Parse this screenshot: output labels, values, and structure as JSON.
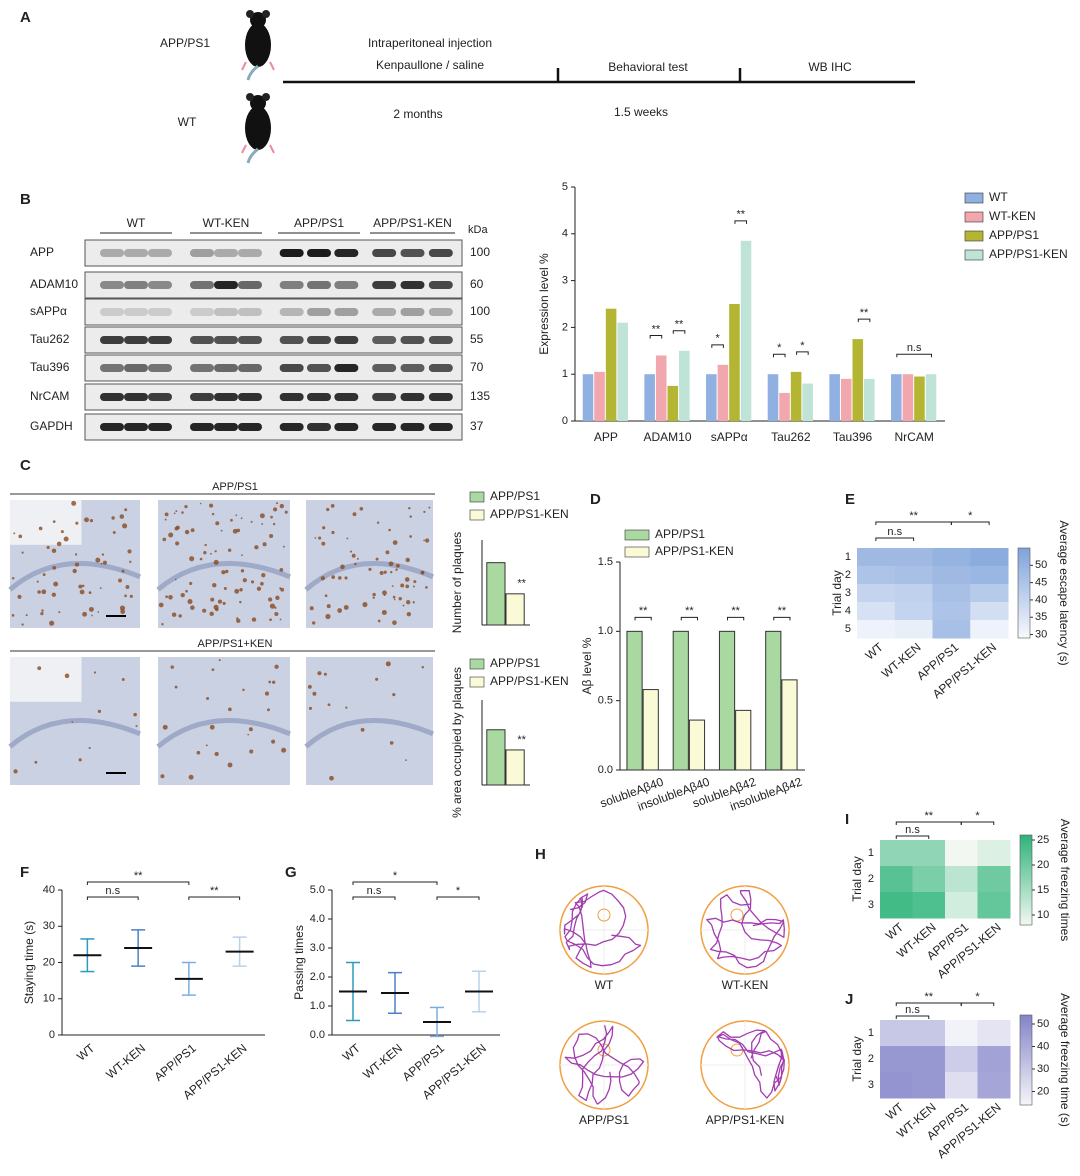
{
  "panels": [
    "A",
    "B",
    "C",
    "D",
    "E",
    "F",
    "G",
    "H",
    "I",
    "J"
  ],
  "timeline": {
    "groups": [
      "APP/PS1",
      "WT"
    ],
    "step1": "Intraperitoneal injection",
    "step1_detail": "Kenpaullone  /   saline",
    "step1_duration": "2 months",
    "step2": "Behavioral test",
    "step2_duration": "1.5 weeks",
    "step3": "WB   IHC"
  },
  "blot": {
    "groups": [
      "WT",
      "WT-KEN",
      "APP/PS1",
      "APP/PS1-KEN"
    ],
    "unit": "kDa",
    "rows": [
      {
        "name": "APP",
        "kda": 100
      },
      {
        "name": "ADAM10",
        "kda": 60
      },
      {
        "name": "sAPPα",
        "kda": 100
      },
      {
        "name": "Tau262",
        "kda": 55
      },
      {
        "name": "Tau396",
        "kda": 70
      },
      {
        "name": "NrCAM",
        "kda": 135
      },
      {
        "name": "GAPDH",
        "kda": 37
      }
    ]
  },
  "histology": {
    "rows": [
      "APP/PS1",
      "APP/PS1+KEN"
    ]
  },
  "tracks": [
    "WT",
    "WT-KEN",
    "APP/PS1",
    "APP/PS1-KEN"
  ],
  "chart_data": [
    {
      "type": "bar",
      "ylabel": "Expression level %",
      "categories": [
        "APP",
        "ADAM10",
        "sAPPα",
        "Tau262",
        "Tau396",
        "NrCAM"
      ],
      "series": [
        {
          "name": "WT",
          "color": "#8fb0e0",
          "values": [
            1,
            1,
            1,
            1,
            1,
            1
          ]
        },
        {
          "name": "WT-KEN",
          "color": "#f2a7ae",
          "values": [
            1.05,
            1.4,
            1.2,
            0.6,
            0.9,
            1.0
          ]
        },
        {
          "name": "APP/PS1",
          "color": "#b5b534",
          "values": [
            2.4,
            0.75,
            2.5,
            1.05,
            1.75,
            0.95
          ]
        },
        {
          "name": "APP/PS1-KEN",
          "color": "#bfe3d6",
          "values": [
            2.1,
            1.5,
            3.85,
            0.8,
            0.9,
            1.0
          ]
        }
      ],
      "ylim": [
        0,
        5
      ],
      "yticks": [
        0,
        1,
        2,
        3,
        4,
        5
      ],
      "annotations": [
        "**",
        "**",
        "*",
        "**",
        "*",
        "*",
        "**",
        "n.s"
      ]
    },
    {
      "type": "bar",
      "ylabel": "Number of plaques",
      "categories": [
        null
      ],
      "series": [
        {
          "name": "APP/PS1",
          "color": "#a9d8a0",
          "values": [
            220
          ]
        },
        {
          "name": "APP/PS1-KEN",
          "color": "#fbfad6",
          "values": [
            110
          ]
        }
      ],
      "ylim": [
        0,
        300
      ],
      "annotations": [
        "**"
      ]
    },
    {
      "type": "bar",
      "ylabel": "% area occupied by plaques",
      "categories": [
        null
      ],
      "series": [
        {
          "name": "APP/PS1",
          "color": "#a9d8a0",
          "values": [
            0.52
          ]
        },
        {
          "name": "APP/PS1-KEN",
          "color": "#fbfad6",
          "values": [
            0.33
          ]
        }
      ],
      "ylim": [
        0,
        0.8
      ],
      "annotations": [
        "**"
      ]
    },
    {
      "type": "bar",
      "ylabel": "Aβ  level %",
      "categories": [
        "solubleAβ40",
        "insolubleAβ40",
        "solubleAβ42",
        "insolubleAβ42"
      ],
      "series": [
        {
          "name": "APP/PS1",
          "color": "#a9d8a0",
          "values": [
            1,
            1,
            1,
            1
          ]
        },
        {
          "name": "APP/PS1-KEN",
          "color": "#fbfad6",
          "values": [
            0.58,
            0.36,
            0.43,
            0.65
          ]
        }
      ],
      "ylim": [
        0,
        1.5
      ],
      "yticks": [
        {
          "value": 0,
          "label": "0.0"
        },
        0.5,
        {
          "value": 1,
          "label": "1.0"
        },
        1.5
      ],
      "annotations": [
        "**",
        "**",
        "**",
        "**"
      ]
    },
    {
      "type": "heatmap",
      "ylabel": "Trial day",
      "colorbar_label": "Average escape latency  (s)",
      "categories": [
        "WT",
        "WT-KEN",
        "APP/PS1",
        "APP/PS1-KEN"
      ],
      "rows": [
        1,
        2,
        3,
        4,
        5
      ],
      "values": [
        [
          48,
          48,
          50,
          52
        ],
        [
          45,
          46,
          48,
          49
        ],
        [
          40,
          41,
          46,
          43
        ],
        [
          36,
          40,
          45,
          37
        ],
        [
          31,
          32,
          46,
          31
        ]
      ],
      "clim": [
        29,
        55
      ],
      "cticks": [
        30,
        35,
        40,
        45,
        50
      ],
      "colors": [
        "#f7f9fd",
        "#7ea2da"
      ],
      "annotations": [
        "**",
        "*",
        "n.s"
      ]
    },
    {
      "type": "dot",
      "ylabel": "Staying time (s)",
      "categories": [
        "WT",
        "WT-KEN",
        "APP/PS1",
        "APP/PS1-KEN"
      ],
      "colors": [
        "#2a9ac0",
        "#4a80c8",
        "#7aaee0",
        "#b8d0ec"
      ],
      "values": [
        22,
        24,
        15.5,
        23
      ],
      "errors": [
        4.5,
        5,
        4.5,
        4
      ],
      "ylim": [
        0,
        40
      ],
      "yticks": [
        0,
        10,
        20,
        30,
        40
      ],
      "annotations": [
        "n.s",
        "**",
        "**"
      ]
    },
    {
      "type": "dot",
      "ylabel": "Passing times",
      "categories": [
        "WT",
        "WT-KEN",
        "APP/PS1",
        "APP/PS1-KEN"
      ],
      "colors": [
        "#2a9ac0",
        "#4a80c8",
        "#7aaee0",
        "#b8d0ec"
      ],
      "values": [
        1.5,
        1.45,
        0.45,
        1.5
      ],
      "errors": [
        1.0,
        0.7,
        0.5,
        0.7
      ],
      "ylim": [
        0,
        5
      ],
      "yticks": [
        {
          "value": 0,
          "label": "0.0"
        },
        {
          "value": 1,
          "label": "1.0"
        },
        {
          "value": 2,
          "label": "2.0"
        },
        {
          "value": 3,
          "label": "3.0"
        },
        {
          "value": 4,
          "label": "4.0"
        },
        {
          "value": 5,
          "label": "5.0"
        }
      ],
      "annotations": [
        "n.s",
        "*",
        "*"
      ]
    },
    {
      "type": "heatmap",
      "ylabel": "Trial day",
      "colorbar_label": "Average freezing times",
      "categories": [
        "WT",
        "WT-KEN",
        "APP/PS1",
        "APP/PS1-KEN"
      ],
      "rows": [
        1,
        2,
        3
      ],
      "values": [
        [
          17,
          17,
          8,
          10
        ],
        [
          22,
          19,
          13,
          20
        ],
        [
          24,
          23,
          11,
          21
        ]
      ],
      "clim": [
        8,
        26
      ],
      "cticks": [
        10,
        15,
        20,
        25
      ],
      "colors": [
        "#f2f8f1",
        "#2db37a"
      ],
      "annotations": [
        "**",
        "*",
        "n.s"
      ]
    },
    {
      "type": "heatmap",
      "ylabel": "Trial day",
      "colorbar_label": "Average freezing time (s)",
      "categories": [
        "WT",
        "WT-KEN",
        "APP/PS1",
        "APP/PS1-KEN"
      ],
      "rows": [
        1,
        2,
        3
      ],
      "values": [
        [
          30,
          30,
          15,
          20
        ],
        [
          47,
          47,
          28,
          43
        ],
        [
          48,
          47,
          22,
          42
        ]
      ],
      "clim": [
        14,
        54
      ],
      "cticks": [
        20,
        30,
        40,
        50
      ],
      "colors": [
        "#f5f5fa",
        "#8383c8"
      ],
      "annotations": [
        "**",
        "*",
        "n.s"
      ]
    }
  ]
}
